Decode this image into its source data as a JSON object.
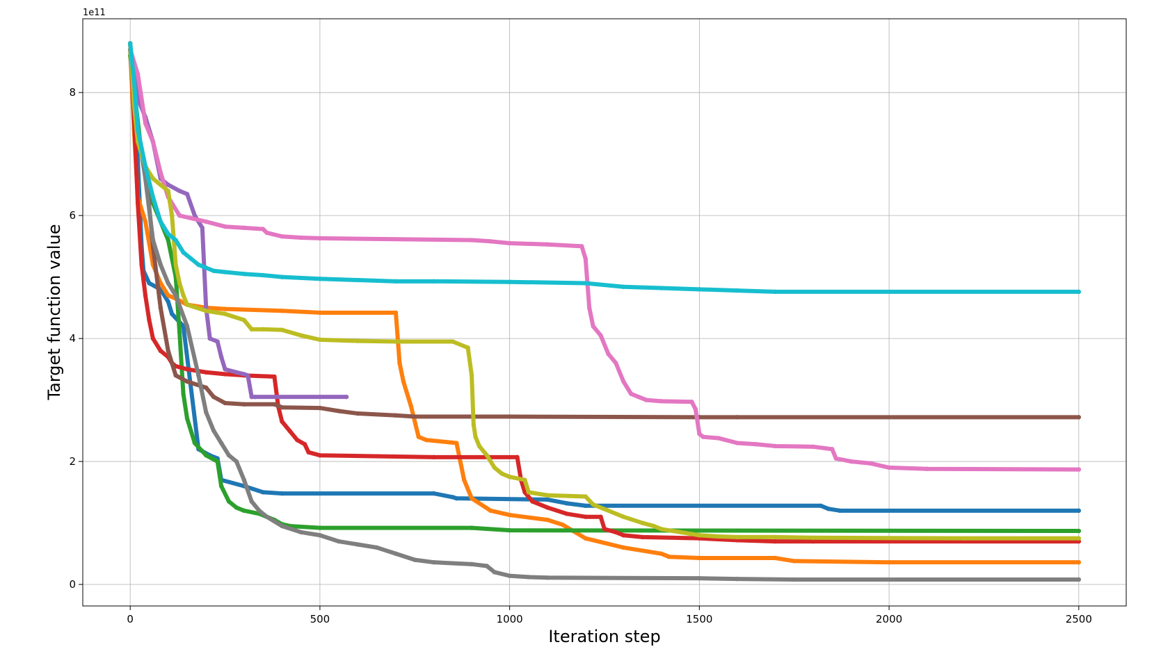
{
  "chart_data": {
    "type": "line",
    "title": "",
    "xlabel": "Iteration step",
    "ylabel": "Target function value",
    "y_offset_label": "1e11",
    "xlim": [
      -125,
      2625
    ],
    "ylim": [
      -0.35,
      9.2
    ],
    "xticks": [
      0,
      500,
      1000,
      1500,
      2000,
      2500
    ],
    "xtick_labels": [
      "0",
      "500",
      "1000",
      "1500",
      "2000",
      "2500"
    ],
    "yticks": [
      0,
      2,
      4,
      6,
      8
    ],
    "ytick_labels": [
      "0",
      "2",
      "4",
      "6",
      "8"
    ],
    "grid": true,
    "legend": "none",
    "y_units_scale": 100000000000.0,
    "series": [
      {
        "color": "#1f77b4",
        "x": [
          0,
          10,
          20,
          30,
          35,
          50,
          80,
          100,
          110,
          140,
          180,
          210,
          230,
          240,
          300,
          350,
          400,
          800,
          850,
          860,
          1100,
          1150,
          1200,
          1820,
          1840,
          1870,
          2500
        ],
        "y": [
          8.8,
          7.8,
          6.9,
          5.5,
          5.1,
          4.9,
          4.8,
          4.6,
          4.4,
          4.2,
          2.2,
          2.1,
          2.05,
          1.7,
          1.6,
          1.5,
          1.48,
          1.48,
          1.42,
          1.4,
          1.38,
          1.32,
          1.28,
          1.28,
          1.23,
          1.2,
          1.2
        ]
      },
      {
        "color": "#ff7f0e",
        "x": [
          0,
          10,
          20,
          40,
          60,
          80,
          100,
          120,
          150,
          200,
          250,
          400,
          500,
          700,
          710,
          720,
          740,
          760,
          780,
          860,
          880,
          900,
          950,
          1000,
          1100,
          1140,
          1200,
          1300,
          1400,
          1420,
          1500,
          1700,
          1750,
          2000,
          2500
        ],
        "y": [
          8.7,
          7.4,
          6.3,
          5.9,
          5.2,
          4.9,
          4.7,
          4.65,
          4.55,
          4.5,
          4.48,
          4.45,
          4.42,
          4.42,
          3.6,
          3.3,
          2.9,
          2.4,
          2.35,
          2.3,
          1.7,
          1.4,
          1.2,
          1.13,
          1.05,
          0.97,
          0.75,
          0.6,
          0.5,
          0.45,
          0.43,
          0.43,
          0.38,
          0.36,
          0.36
        ]
      },
      {
        "color": "#2ca02c",
        "x": [
          0,
          30,
          60,
          100,
          120,
          130,
          140,
          150,
          170,
          200,
          230,
          240,
          260,
          280,
          300,
          340,
          380,
          400,
          420,
          500,
          900,
          1000,
          2500
        ],
        "y": [
          8.6,
          7.0,
          6.2,
          5.6,
          5.0,
          4.1,
          3.1,
          2.7,
          2.3,
          2.1,
          2.0,
          1.6,
          1.35,
          1.25,
          1.2,
          1.15,
          1.05,
          0.98,
          0.95,
          0.92,
          0.92,
          0.88,
          0.87
        ]
      },
      {
        "color": "#d62728",
        "x": [
          0,
          10,
          20,
          30,
          40,
          50,
          60,
          80,
          100,
          110,
          120,
          150,
          200,
          250,
          300,
          380,
          390,
          400,
          420,
          440,
          460,
          470,
          500,
          800,
          1020,
          1030,
          1040,
          1060,
          1100,
          1150,
          1200,
          1240,
          1250,
          1280,
          1300,
          1350,
          1500,
          1600,
          1700,
          1800,
          2500
        ],
        "y": [
          8.8,
          7.6,
          6.2,
          5.2,
          4.7,
          4.3,
          4.0,
          3.8,
          3.7,
          3.6,
          3.55,
          3.5,
          3.45,
          3.42,
          3.4,
          3.38,
          2.9,
          2.65,
          2.5,
          2.35,
          2.28,
          2.15,
          2.1,
          2.07,
          2.07,
          1.7,
          1.5,
          1.35,
          1.25,
          1.15,
          1.1,
          1.1,
          0.9,
          0.85,
          0.8,
          0.77,
          0.75,
          0.72,
          0.7,
          0.7,
          0.7
        ]
      },
      {
        "color": "#9467bd",
        "x": [
          0,
          20,
          40,
          60,
          80,
          100,
          130,
          150,
          170,
          190,
          200,
          210,
          230,
          240,
          250,
          280,
          300,
          310,
          320,
          330,
          570
        ],
        "y": [
          8.7,
          7.9,
          7.6,
          7.2,
          6.6,
          6.5,
          6.4,
          6.35,
          6.0,
          5.8,
          4.5,
          4.0,
          3.95,
          3.7,
          3.5,
          3.45,
          3.42,
          3.4,
          3.05,
          3.05,
          3.05
        ]
      },
      {
        "color": "#8c564b",
        "x": [
          0,
          20,
          40,
          60,
          80,
          100,
          120,
          150,
          200,
          220,
          250,
          300,
          380,
          400,
          500,
          550,
          600,
          700,
          750,
          1000,
          1500,
          1600,
          2500
        ],
        "y": [
          8.8,
          7.3,
          6.8,
          5.5,
          4.5,
          3.8,
          3.4,
          3.3,
          3.2,
          3.05,
          2.95,
          2.93,
          2.93,
          2.88,
          2.87,
          2.82,
          2.78,
          2.75,
          2.73,
          2.73,
          2.72,
          2.72,
          2.72
        ]
      },
      {
        "color": "#e377c2",
        "x": [
          0,
          20,
          40,
          60,
          80,
          100,
          130,
          200,
          250,
          300,
          350,
          360,
          400,
          450,
          500,
          900,
          950,
          1000,
          1100,
          1190,
          1200,
          1210,
          1220,
          1240,
          1260,
          1280,
          1300,
          1320,
          1340,
          1360,
          1400,
          1480,
          1490,
          1500,
          1510,
          1550,
          1600,
          1650,
          1700,
          1800,
          1850,
          1860,
          1900,
          1950,
          2000,
          2100,
          2500
        ],
        "y": [
          8.7,
          8.3,
          7.5,
          7.2,
          6.7,
          6.3,
          6.0,
          5.9,
          5.82,
          5.8,
          5.78,
          5.72,
          5.66,
          5.64,
          5.63,
          5.6,
          5.58,
          5.55,
          5.53,
          5.5,
          5.3,
          4.5,
          4.2,
          4.05,
          3.75,
          3.6,
          3.3,
          3.1,
          3.05,
          3.0,
          2.98,
          2.97,
          2.85,
          2.45,
          2.4,
          2.38,
          2.3,
          2.28,
          2.25,
          2.24,
          2.2,
          2.05,
          2.0,
          1.97,
          1.9,
          1.88,
          1.87
        ]
      },
      {
        "color": "#7f7f7f",
        "x": [
          0,
          20,
          40,
          60,
          80,
          100,
          120,
          150,
          180,
          200,
          220,
          240,
          260,
          280,
          300,
          320,
          340,
          360,
          400,
          450,
          500,
          550,
          600,
          650,
          700,
          750,
          800,
          900,
          940,
          960,
          1000,
          1050,
          1100,
          1500,
          1600,
          1750,
          2500
        ],
        "y": [
          8.7,
          7.4,
          6.6,
          5.6,
          5.2,
          4.9,
          4.7,
          4.2,
          3.4,
          2.8,
          2.5,
          2.3,
          2.1,
          2.0,
          1.7,
          1.35,
          1.2,
          1.1,
          0.95,
          0.85,
          0.8,
          0.7,
          0.65,
          0.6,
          0.5,
          0.4,
          0.36,
          0.33,
          0.3,
          0.2,
          0.14,
          0.12,
          0.11,
          0.1,
          0.09,
          0.08,
          0.08
        ]
      },
      {
        "color": "#bcbd22",
        "x": [
          0,
          10,
          20,
          40,
          60,
          80,
          100,
          110,
          120,
          130,
          140,
          150,
          200,
          250,
          300,
          320,
          350,
          400,
          450,
          500,
          600,
          700,
          850,
          890,
          900,
          905,
          910,
          920,
          940,
          960,
          980,
          1000,
          1040,
          1050,
          1100,
          1200,
          1220,
          1300,
          1350,
          1380,
          1400,
          1450,
          1500,
          1550,
          1600,
          1700,
          1800,
          2200,
          2500
        ],
        "y": [
          8.8,
          7.8,
          7.2,
          6.8,
          6.6,
          6.5,
          6.4,
          6.0,
          5.2,
          4.9,
          4.7,
          4.55,
          4.45,
          4.4,
          4.3,
          4.15,
          4.15,
          4.14,
          4.05,
          3.98,
          3.96,
          3.95,
          3.95,
          3.85,
          3.4,
          2.6,
          2.4,
          2.25,
          2.1,
          1.9,
          1.8,
          1.75,
          1.7,
          1.5,
          1.45,
          1.43,
          1.3,
          1.1,
          1.0,
          0.95,
          0.9,
          0.85,
          0.8,
          0.78,
          0.77,
          0.77,
          0.76,
          0.75,
          0.75
        ]
      },
      {
        "color": "#17becf",
        "x": [
          0,
          10,
          20,
          40,
          60,
          80,
          100,
          120,
          140,
          160,
          180,
          200,
          220,
          250,
          300,
          350,
          400,
          500,
          600,
          700,
          800,
          1000,
          1200,
          1300,
          1400,
          1500,
          1600,
          1700,
          2500
        ],
        "y": [
          8.8,
          8.2,
          7.4,
          6.8,
          6.3,
          5.9,
          5.7,
          5.6,
          5.4,
          5.3,
          5.2,
          5.15,
          5.1,
          5.08,
          5.05,
          5.03,
          5.0,
          4.97,
          4.95,
          4.93,
          4.93,
          4.92,
          4.9,
          4.84,
          4.82,
          4.8,
          4.78,
          4.76,
          4.76
        ]
      }
    ]
  }
}
